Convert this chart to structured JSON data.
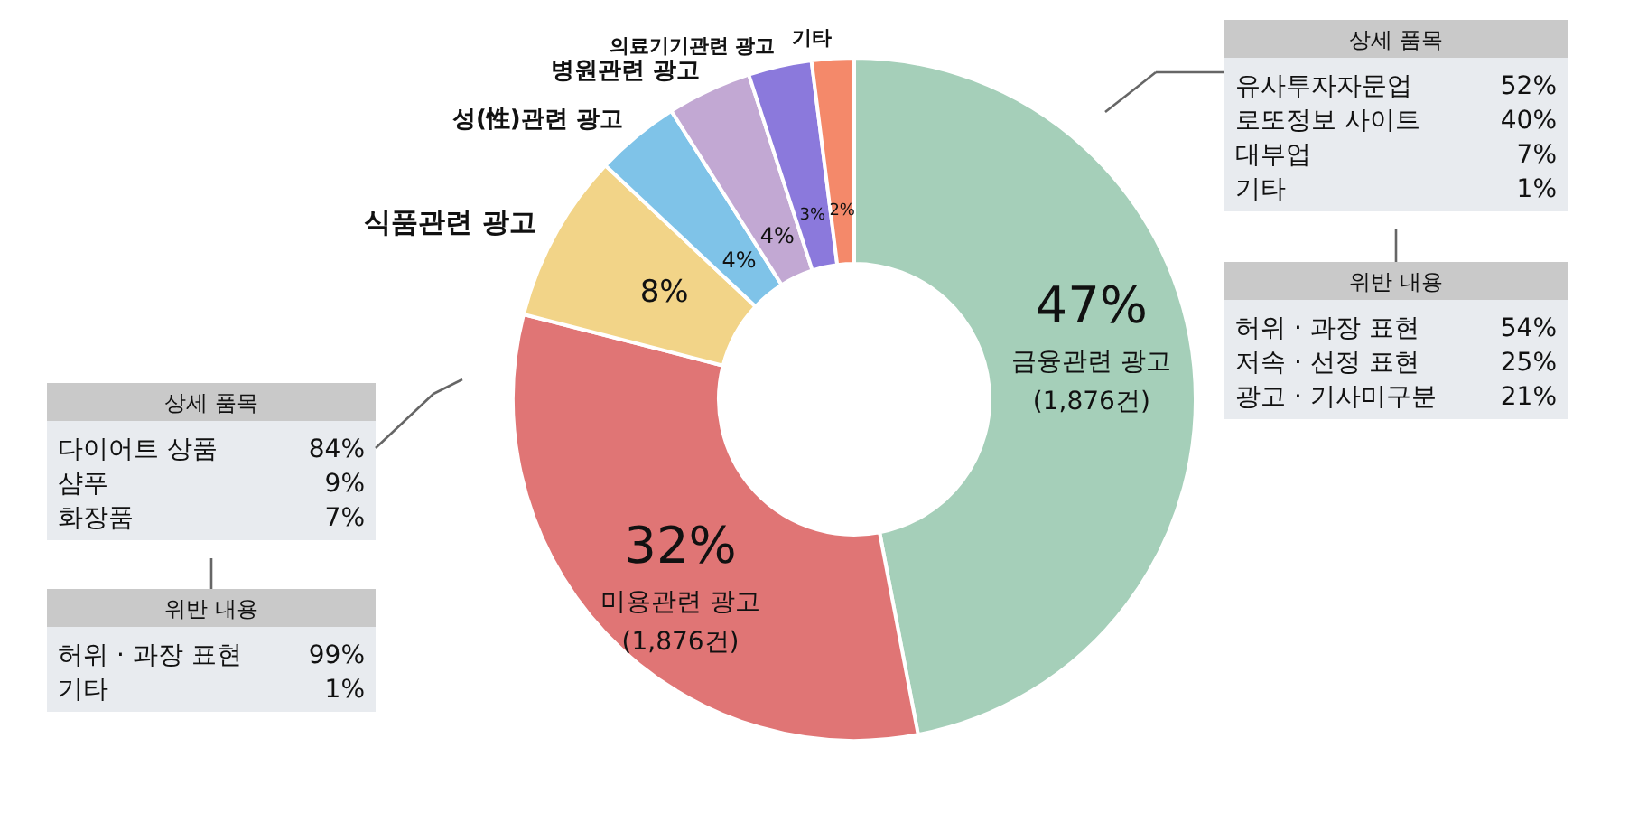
{
  "chart_data": {
    "type": "donut",
    "categories": [
      "금융관련 광고",
      "미용관련 광고",
      "식품관련 광고",
      "성(性)관련 광고",
      "병원관련 광고",
      "의료기기관련 광고",
      "기타"
    ],
    "values": [
      47,
      32,
      8,
      4,
      4,
      3,
      2
    ],
    "colors": [
      "#a5cfb9",
      "#e07575",
      "#f2d488",
      "#7fc3e8",
      "#c2a8d3",
      "#8b79dc",
      "#f4896a"
    ],
    "value_labels": [
      "47%",
      "32%",
      "8%",
      "4%",
      "4%",
      "3%",
      "2%"
    ],
    "annotations": [
      "(1,876건)",
      "(1,876건)",
      "상세 품목",
      "유사투자자문업 52%",
      "로또정보 사이트 40%",
      "대부업 7%",
      "기타 1%",
      "위반 내용",
      "허위 · 과장 표현 54%",
      "저속 · 선정 표현 25%",
      "광고 · 기사미구분 21%",
      "상세 품목",
      "다이어트 상품 84%",
      "샴푸 9%",
      "화장품 7%",
      "위반 내용",
      "허위 · 과장 표현 99%",
      "기타 1%"
    ]
  }
}
